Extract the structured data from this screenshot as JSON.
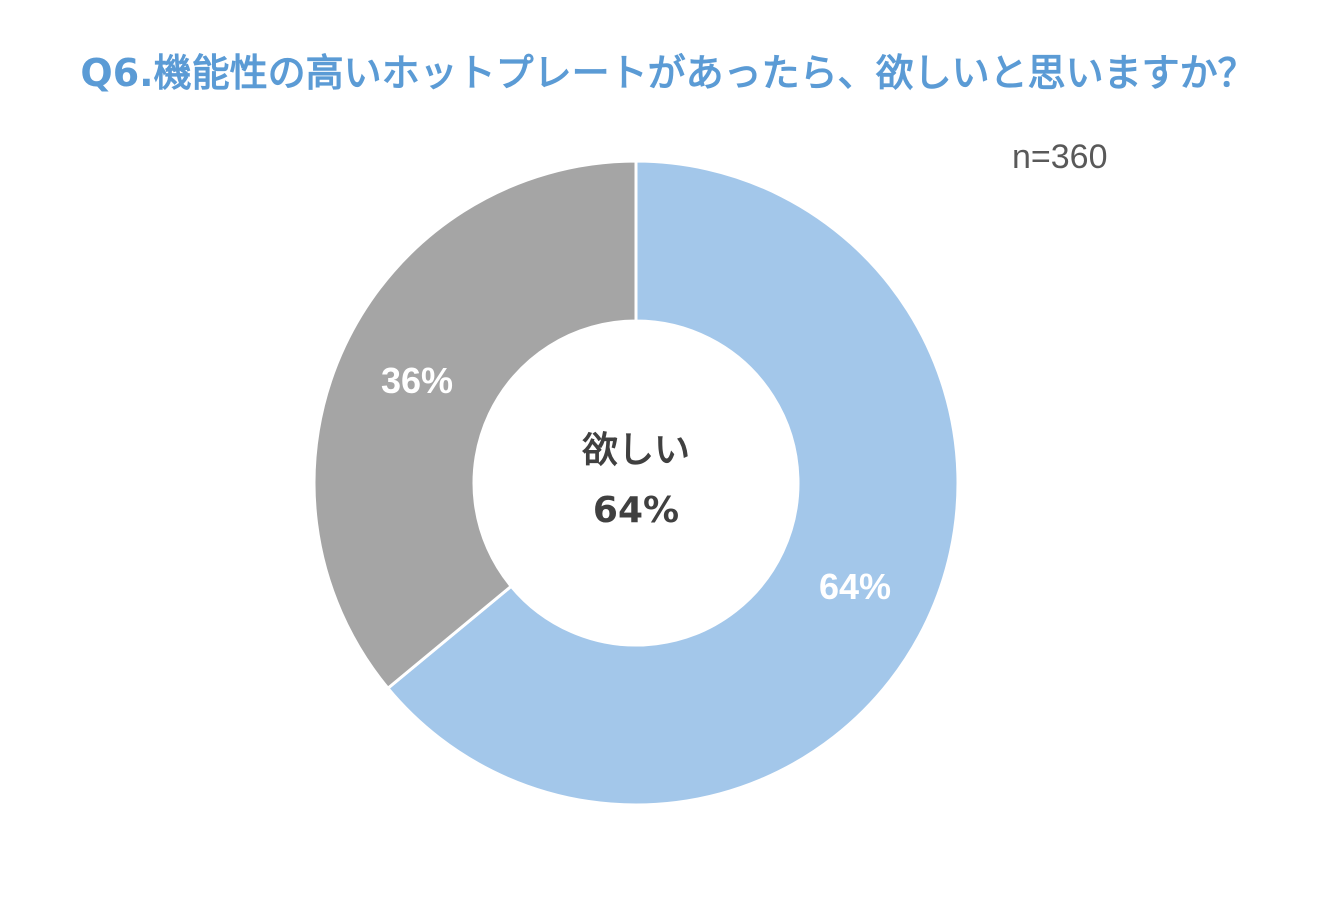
{
  "chart_data": {
    "type": "pie",
    "title": "Q6.機能性の高いホットプレートがあったら、欲しいと思いますか？",
    "annotation": "n=360",
    "slices": [
      {
        "label": "欲しい",
        "value": 64,
        "display": "64%",
        "color": "#A3C7EA"
      },
      {
        "label": "",
        "value": 36,
        "display": "36%",
        "color": "#A5A5A5"
      }
    ],
    "center": {
      "label": "欲しい",
      "value": "64%"
    },
    "donut": true,
    "legend": "none"
  }
}
